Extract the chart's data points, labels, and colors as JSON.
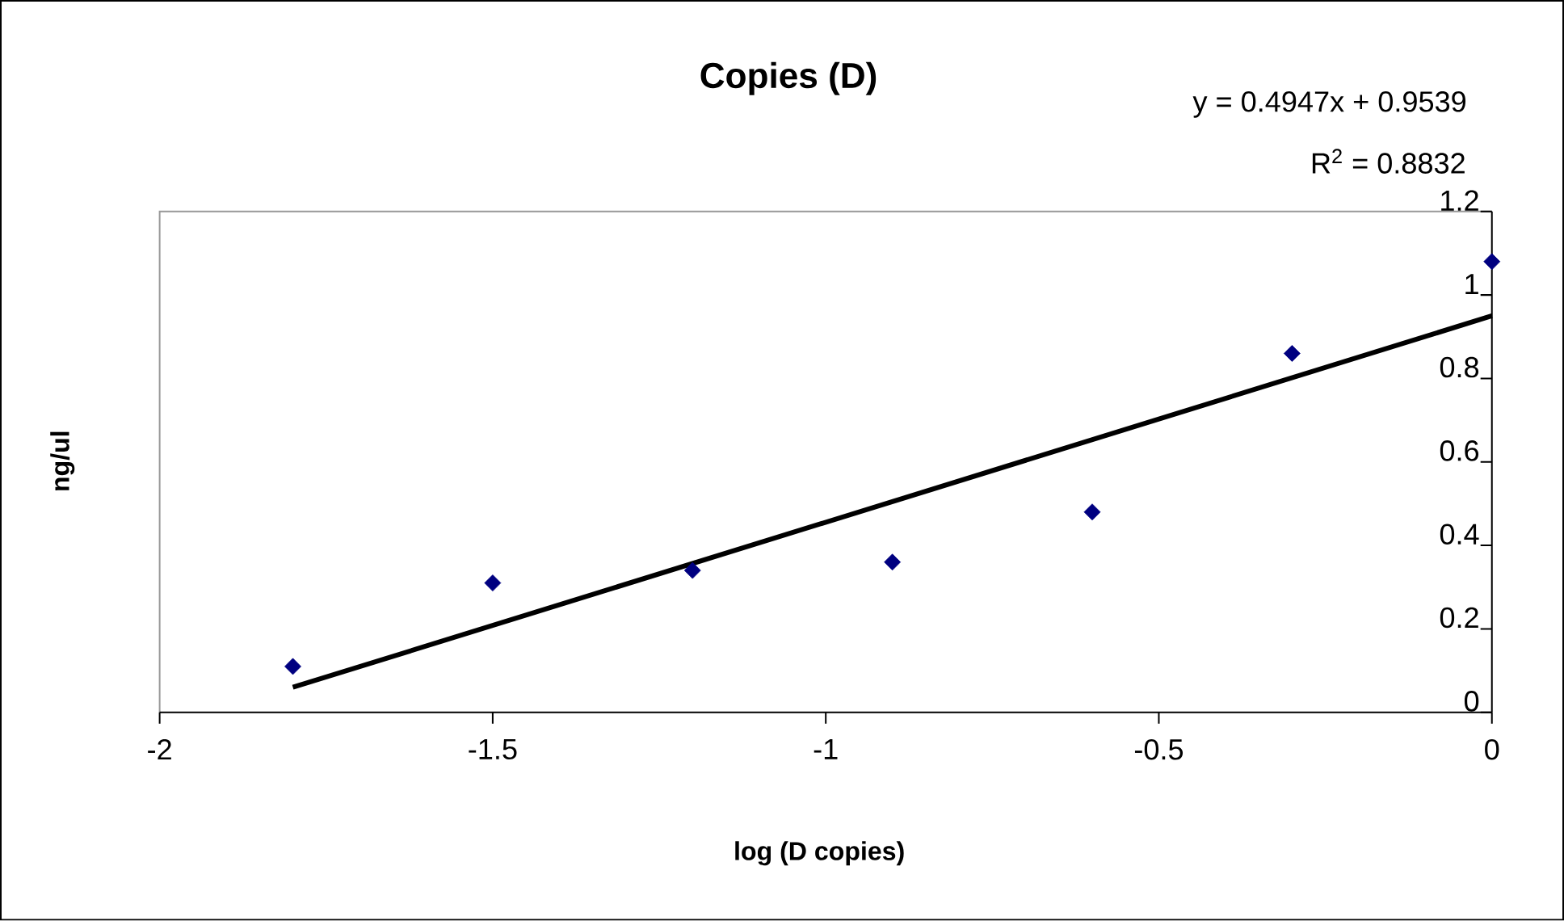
{
  "chart_data": {
    "type": "scatter",
    "title": "Copies (D)",
    "xlabel": "log (D copies)",
    "ylabel": "ng/ul",
    "annotations": [
      "y = 0.4947x + 0.9539",
      "R$^{2}$ = 0.8832"
    ],
    "x": [
      -1.8,
      -1.5,
      -1.2,
      -0.9,
      -0.6,
      -0.3,
      0
    ],
    "series": [
      {
        "color": "#000080",
        "marker": "diamond",
        "values": [
          0.11,
          0.31,
          0.34,
          0.36,
          0.48,
          0.86,
          1.08
        ]
      },
      {
        "type": "line",
        "color": "#000000",
        "line_style": "solid",
        "x": [
          -1.8,
          0
        ],
        "values": [
          0.06,
          0.95
        ]
      }
    ],
    "xlim": [
      -2,
      0
    ],
    "ylim": [
      0,
      1.2
    ],
    "xticks": [
      -2,
      -1.5,
      -1,
      -0.5,
      0
    ],
    "yticks": [
      0,
      0.2,
      0.4,
      0.6,
      0.8,
      1,
      1.2
    ]
  }
}
